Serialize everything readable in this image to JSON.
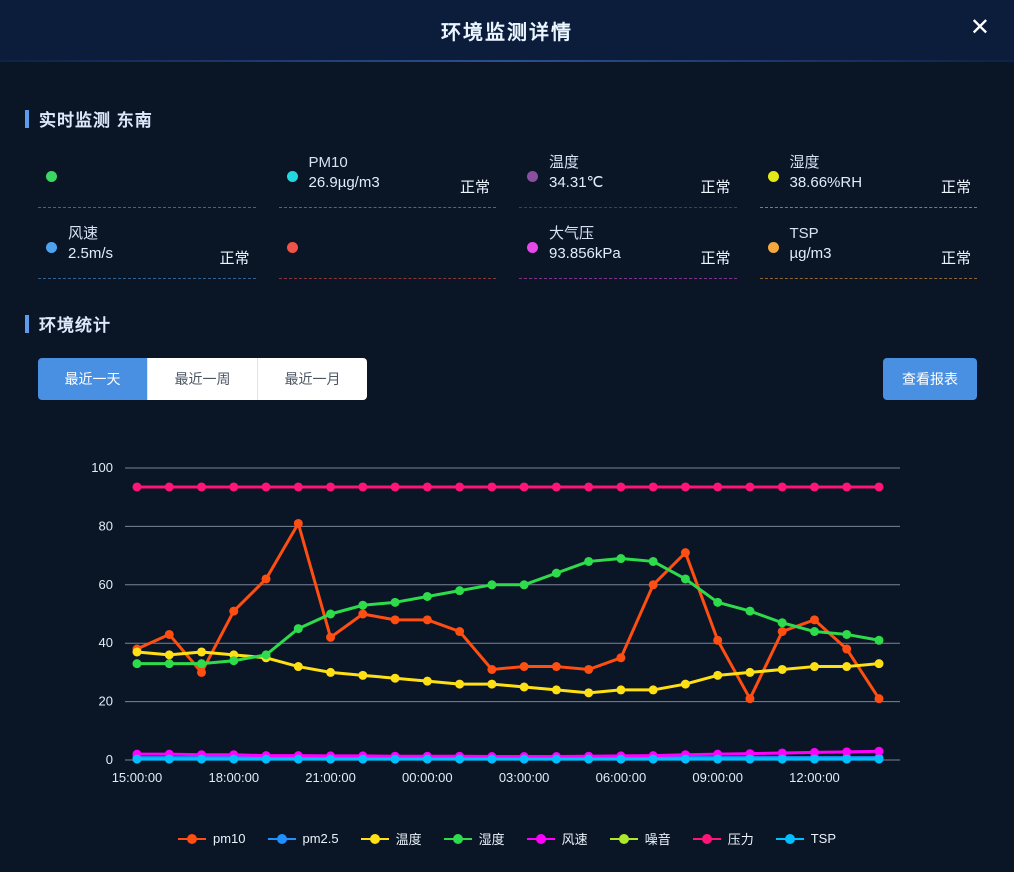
{
  "header": {
    "title": "环境监测详情",
    "close_symbol": "✕"
  },
  "realtime": {
    "section_title": "实时监测 东南",
    "cards": [
      {
        "dot_color": "#3bd664",
        "label": "",
        "value": "",
        "status": ""
      },
      {
        "dot_color": "#22d8e0",
        "label": "PM10",
        "value": "26.9µg/m3",
        "status": "正常"
      },
      {
        "dot_color": "#8a4f9e",
        "label": "温度",
        "value": "34.31℃",
        "status": "正常"
      },
      {
        "dot_color": "#e6e81a",
        "label": "湿度",
        "value": "38.66%RH",
        "status": "正常"
      },
      {
        "dot_color": "#4da3f0",
        "label": "风速",
        "value": "2.5m/s",
        "status": "正常"
      },
      {
        "dot_color": "#f05348",
        "label": "",
        "value": "",
        "status": ""
      },
      {
        "dot_color": "#e549e8",
        "label": "大气压",
        "value": "93.856kPa",
        "status": "正常"
      },
      {
        "dot_color": "#f5a83c",
        "label": "TSP",
        "value": "µg/m3",
        "status": "正常"
      }
    ]
  },
  "stats": {
    "section_title": "环境统计",
    "tabs": [
      {
        "label": "最近一天",
        "active": true
      },
      {
        "label": "最近一周",
        "active": false
      },
      {
        "label": "最近一月",
        "active": false
      }
    ],
    "report_button": "查看报表"
  },
  "chart_data": {
    "type": "line",
    "title": "",
    "xlabel": "",
    "ylabel": "",
    "x_unit": "hourly, 15:00 to 14:00 next day",
    "num_points": 24,
    "x_tick_labels": [
      "15:00:00",
      "18:00:00",
      "21:00:00",
      "00:00:00",
      "03:00:00",
      "06:00:00",
      "09:00:00",
      "12:00:00"
    ],
    "x_tick_indices": [
      0,
      3,
      6,
      9,
      12,
      15,
      18,
      21
    ],
    "ylim": [
      0,
      100
    ],
    "yticks": [
      0,
      20,
      40,
      60,
      80,
      100
    ],
    "grid": true,
    "legend_position": "bottom",
    "series": [
      {
        "name": "pm10",
        "color": "#ff4e11",
        "values": [
          38,
          43,
          30,
          51,
          62,
          81,
          42,
          50,
          48,
          48,
          44,
          31,
          32,
          32,
          31,
          35,
          60,
          71,
          41,
          21,
          44,
          48,
          38,
          21
        ]
      },
      {
        "name": "pm2.5",
        "color": "#1e90ff",
        "values": [
          0.8,
          0.8,
          0.8,
          0.8,
          0.8,
          0.8,
          0.8,
          0.8,
          0.8,
          0.8,
          0.8,
          0.8,
          0.8,
          0.8,
          0.8,
          0.8,
          0.8,
          0.8,
          0.8,
          0.8,
          0.8,
          0.8,
          0.8,
          0.8
        ]
      },
      {
        "name": "温度",
        "color": "#ffe014",
        "values": [
          37,
          36,
          37,
          36,
          35,
          32,
          30,
          29,
          28,
          27,
          26,
          26,
          25,
          24,
          23,
          24,
          24,
          26,
          29,
          30,
          31,
          32,
          32,
          33
        ]
      },
      {
        "name": "湿度",
        "color": "#2edb4b",
        "values": [
          33,
          33,
          33,
          34,
          36,
          45,
          50,
          53,
          54,
          56,
          58,
          60,
          60,
          64,
          68,
          69,
          68,
          62,
          54,
          51,
          47,
          44,
          43,
          41
        ]
      },
      {
        "name": "风速",
        "color": "#ff00ff",
        "values": [
          2,
          2,
          1.8,
          1.8,
          1.5,
          1.5,
          1.4,
          1.4,
          1.3,
          1.3,
          1.3,
          1.2,
          1.2,
          1.2,
          1.3,
          1.4,
          1.5,
          1.8,
          2,
          2.2,
          2.4,
          2.6,
          2.8,
          3
        ]
      },
      {
        "name": "噪音",
        "color": "#aee82a",
        "values": []
      },
      {
        "name": "压力",
        "color": "#ff1478",
        "values": [
          93.5,
          93.5,
          93.5,
          93.5,
          93.5,
          93.5,
          93.5,
          93.5,
          93.5,
          93.5,
          93.5,
          93.5,
          93.5,
          93.5,
          93.5,
          93.5,
          93.5,
          93.5,
          93.5,
          93.5,
          93.5,
          93.5,
          93.5,
          93.5
        ]
      },
      {
        "name": "TSP",
        "color": "#00bfff",
        "values": [
          0.3,
          0.3,
          0.3,
          0.3,
          0.3,
          0.3,
          0.3,
          0.3,
          0.3,
          0.3,
          0.3,
          0.3,
          0.3,
          0.3,
          0.3,
          0.3,
          0.3,
          0.3,
          0.3,
          0.3,
          0.3,
          0.3,
          0.3,
          0.3
        ]
      }
    ]
  }
}
